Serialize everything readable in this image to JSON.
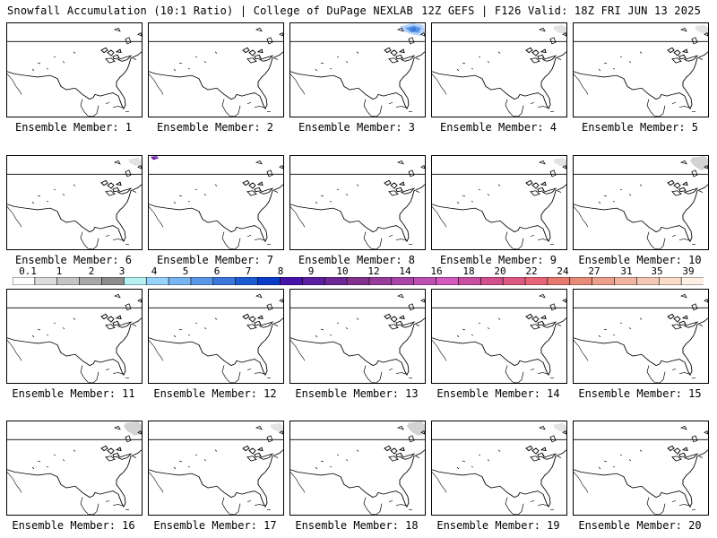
{
  "header": {
    "left_title": "Snowfall Accumulation (10:1 Ratio) | College of DuPage NEXLAB",
    "right_title": "12Z GEFS | F126 Valid: 18Z FRI JUN 13 2025"
  },
  "members": [
    {
      "label": "Ensemble Member: 1",
      "snow": "none"
    },
    {
      "label": "Ensemble Member: 2",
      "snow": "none"
    },
    {
      "label": "Ensemble Member: 3",
      "snow": "blue-northeast-canada"
    },
    {
      "label": "Ensemble Member: 4",
      "snow": "trace"
    },
    {
      "label": "Ensemble Member: 5",
      "snow": "trace"
    },
    {
      "label": "Ensemble Member: 6",
      "snow": "trace"
    },
    {
      "label": "Ensemble Member: 7",
      "snow": "purple-northwest-corner"
    },
    {
      "label": "Ensemble Member: 8",
      "snow": "none"
    },
    {
      "label": "Ensemble Member: 9",
      "snow": "trace"
    },
    {
      "label": "Ensemble Member: 10",
      "snow": "light-northeast-canada"
    },
    {
      "label": "Ensemble Member: 11",
      "snow": "none"
    },
    {
      "label": "Ensemble Member: 12",
      "snow": "none"
    },
    {
      "label": "Ensemble Member: 13",
      "snow": "none"
    },
    {
      "label": "Ensemble Member: 14",
      "snow": "none"
    },
    {
      "label": "Ensemble Member: 15",
      "snow": "none"
    },
    {
      "label": "Ensemble Member: 16",
      "snow": "light-northeast-canada"
    },
    {
      "label": "Ensemble Member: 17",
      "snow": "trace"
    },
    {
      "label": "Ensemble Member: 18",
      "snow": "light-northeast-canada"
    },
    {
      "label": "Ensemble Member: 19",
      "snow": "trace"
    },
    {
      "label": "Ensemble Member: 20",
      "snow": "none"
    }
  ],
  "colorbar": {
    "labels": [
      "0.1",
      "1",
      "2",
      "3",
      "4",
      "5",
      "6",
      "7",
      "8",
      "9",
      "10",
      "12",
      "14",
      "16",
      "18",
      "20",
      "22",
      "24",
      "27",
      "31",
      "35",
      "39"
    ],
    "colors": [
      "#ffffff",
      "#dcdcdc",
      "#c4c4c4",
      "#a8a8a8",
      "#8c8c8c",
      "#b4f0f0",
      "#96d2fa",
      "#78b4f0",
      "#5a96e6",
      "#3c78dc",
      "#1e5ad2",
      "#0a3cc8",
      "#4614aa",
      "#5a1ea0",
      "#6e2896",
      "#82328c",
      "#963c9b",
      "#aa46aa",
      "#be50b4",
      "#d25abe",
      "#c850a0",
      "#d2508c",
      "#dc5a82",
      "#e66478",
      "#e6786e",
      "#e68c78",
      "#eba08c",
      "#f0b4a0",
      "#f5c8b4",
      "#fadcc8",
      "#fff0e6"
    ]
  },
  "colors": {
    "map_outline": "#000000",
    "snow_blue": "#5a96e6",
    "snow_light": "#c8c8c8",
    "snow_purple": "#7a1ea0"
  }
}
